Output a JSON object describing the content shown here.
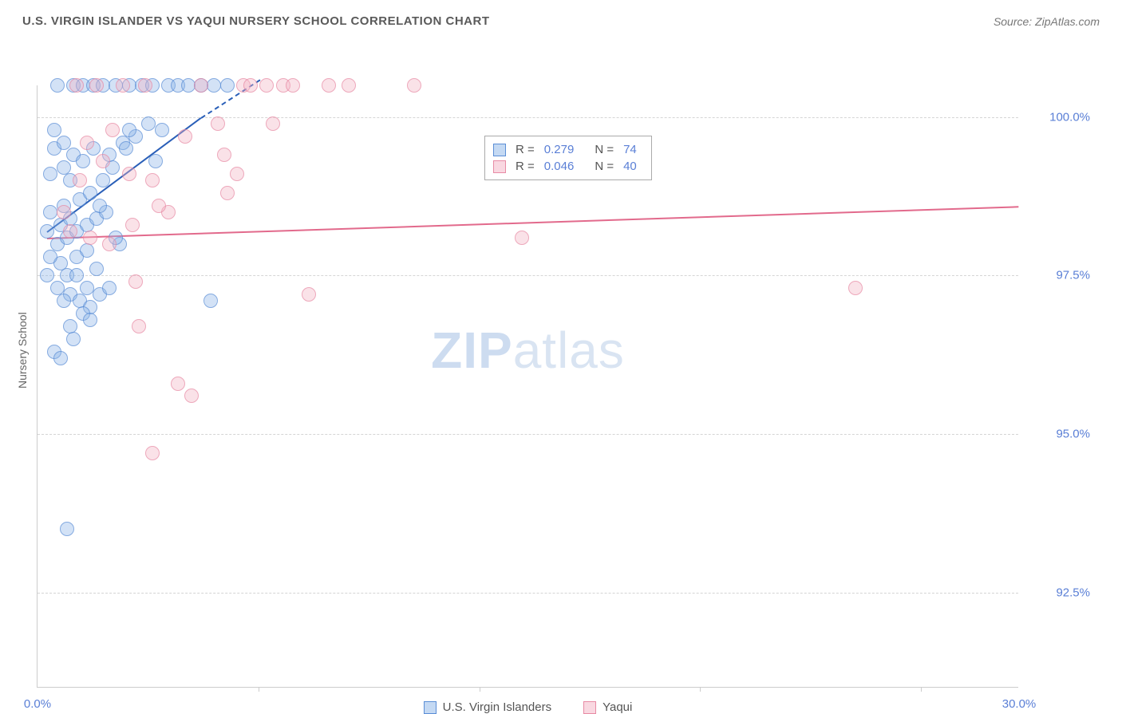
{
  "header": {
    "title": "U.S. VIRGIN ISLANDER VS YAQUI NURSERY SCHOOL CORRELATION CHART",
    "source": "Source: ZipAtlas.com"
  },
  "chart": {
    "type": "scatter",
    "background_color": "#ffffff",
    "grid_color": "#d5d5d5",
    "axes_color": "#cccccc",
    "y_axis_label": "Nursery School",
    "x_axis": {
      "min": 0.0,
      "max": 30.0,
      "ticks": [
        {
          "value": 0.0,
          "label": "0.0%"
        },
        {
          "value": 30.0,
          "label": "30.0%"
        }
      ],
      "minor_ticks": [
        6.75,
        13.5,
        20.25,
        27.0
      ],
      "label_color": "#5a7fd6",
      "label_fontsize": 15
    },
    "y_axis": {
      "min": 91.0,
      "max": 100.5,
      "ticks": [
        {
          "value": 92.5,
          "label": "92.5%"
        },
        {
          "value": 95.0,
          "label": "95.0%"
        },
        {
          "value": 97.5,
          "label": "97.5%"
        },
        {
          "value": 100.0,
          "label": "100.0%"
        }
      ],
      "label_color": "#5a7fd6",
      "label_fontsize": 15
    },
    "watermark": {
      "bold": "ZIP",
      "light": "atlas"
    },
    "series": [
      {
        "name": "U.S. Virgin Islanders",
        "color_fill": "rgba(138,180,232,0.5)",
        "color_stroke": "#5b8ed6",
        "marker": "circle",
        "marker_size": 18,
        "points": [
          [
            0.3,
            98.2
          ],
          [
            0.4,
            98.5
          ],
          [
            0.4,
            99.1
          ],
          [
            0.5,
            99.5
          ],
          [
            0.5,
            99.8
          ],
          [
            0.6,
            100.5
          ],
          [
            0.6,
            98.0
          ],
          [
            0.7,
            97.7
          ],
          [
            0.7,
            98.3
          ],
          [
            0.8,
            98.6
          ],
          [
            0.8,
            99.2
          ],
          [
            0.8,
            99.6
          ],
          [
            0.9,
            98.1
          ],
          [
            0.9,
            97.5
          ],
          [
            1.0,
            97.2
          ],
          [
            1.0,
            98.4
          ],
          [
            1.0,
            99.0
          ],
          [
            1.1,
            99.4
          ],
          [
            1.1,
            100.5
          ],
          [
            1.2,
            98.2
          ],
          [
            1.2,
            97.8
          ],
          [
            1.3,
            97.1
          ],
          [
            1.3,
            98.7
          ],
          [
            1.4,
            99.3
          ],
          [
            1.4,
            100.5
          ],
          [
            1.5,
            98.3
          ],
          [
            1.5,
            97.3
          ],
          [
            1.6,
            97.0
          ],
          [
            1.6,
            98.8
          ],
          [
            1.7,
            99.5
          ],
          [
            1.7,
            100.5
          ],
          [
            1.8,
            98.4
          ],
          [
            1.9,
            97.2
          ],
          [
            2.0,
            99.0
          ],
          [
            2.0,
            100.5
          ],
          [
            2.1,
            98.5
          ],
          [
            2.2,
            97.3
          ],
          [
            2.3,
            99.2
          ],
          [
            2.4,
            100.5
          ],
          [
            2.5,
            98.0
          ],
          [
            2.6,
            99.6
          ],
          [
            2.8,
            100.5
          ],
          [
            3.0,
            99.7
          ],
          [
            3.2,
            100.5
          ],
          [
            3.4,
            99.9
          ],
          [
            3.5,
            100.5
          ],
          [
            3.8,
            99.8
          ],
          [
            4.0,
            100.5
          ],
          [
            4.3,
            100.5
          ],
          [
            4.6,
            100.5
          ],
          [
            5.0,
            100.5
          ],
          [
            5.4,
            100.5
          ],
          [
            5.8,
            100.5
          ],
          [
            0.5,
            96.3
          ],
          [
            0.7,
            96.2
          ],
          [
            1.0,
            96.7
          ],
          [
            1.4,
            96.9
          ],
          [
            0.9,
            93.5
          ],
          [
            1.2,
            97.5
          ],
          [
            1.6,
            96.8
          ],
          [
            1.8,
            97.6
          ],
          [
            2.2,
            99.4
          ],
          [
            2.4,
            98.1
          ],
          [
            2.8,
            99.8
          ],
          [
            3.6,
            99.3
          ],
          [
            5.3,
            97.1
          ],
          [
            0.3,
            97.5
          ],
          [
            0.4,
            97.8
          ],
          [
            0.6,
            97.3
          ],
          [
            0.8,
            97.1
          ],
          [
            1.1,
            96.5
          ],
          [
            1.5,
            97.9
          ],
          [
            1.9,
            98.6
          ],
          [
            2.7,
            99.5
          ]
        ],
        "trendline": {
          "color": "#2a5fb8",
          "start": [
            0.3,
            98.2
          ],
          "end_solid": [
            5.0,
            100.0
          ],
          "end_dash": [
            6.8,
            100.6
          ]
        },
        "stats": {
          "R": "0.279",
          "N": "74"
        }
      },
      {
        "name": "Yaqui",
        "color_fill": "rgba(244,178,195,0.5)",
        "color_stroke": "#e88ba5",
        "marker": "circle",
        "marker_size": 18,
        "points": [
          [
            0.8,
            98.5
          ],
          [
            1.0,
            98.2
          ],
          [
            1.2,
            100.5
          ],
          [
            1.3,
            99.0
          ],
          [
            1.5,
            99.6
          ],
          [
            1.6,
            98.1
          ],
          [
            1.8,
            100.5
          ],
          [
            2.0,
            99.3
          ],
          [
            2.2,
            98.0
          ],
          [
            2.3,
            99.8
          ],
          [
            2.6,
            100.5
          ],
          [
            2.8,
            99.1
          ],
          [
            3.0,
            97.4
          ],
          [
            3.1,
            96.7
          ],
          [
            3.3,
            100.5
          ],
          [
            3.5,
            99.0
          ],
          [
            3.5,
            94.7
          ],
          [
            4.0,
            98.5
          ],
          [
            4.3,
            95.8
          ],
          [
            4.7,
            95.6
          ],
          [
            5.0,
            100.5
          ],
          [
            5.5,
            99.9
          ],
          [
            5.8,
            98.8
          ],
          [
            6.1,
            99.1
          ],
          [
            6.3,
            100.5
          ],
          [
            6.5,
            100.5
          ],
          [
            7.0,
            100.5
          ],
          [
            7.2,
            99.9
          ],
          [
            7.5,
            100.5
          ],
          [
            7.8,
            100.5
          ],
          [
            8.3,
            97.2
          ],
          [
            11.5,
            100.5
          ],
          [
            8.9,
            100.5
          ],
          [
            9.5,
            100.5
          ],
          [
            14.8,
            98.1
          ],
          [
            25.0,
            97.3
          ],
          [
            2.9,
            98.3
          ],
          [
            3.7,
            98.6
          ],
          [
            5.7,
            99.4
          ],
          [
            4.5,
            99.7
          ]
        ],
        "trendline": {
          "color": "#e26a8c",
          "start": [
            0.3,
            98.1
          ],
          "end_solid": [
            30.0,
            98.6
          ]
        },
        "stats": {
          "R": "0.046",
          "N": "40"
        }
      }
    ],
    "stat_box": {
      "rows": [
        {
          "swatch": "blue",
          "R_label": "R =",
          "R_val": "0.279",
          "N_label": "N =",
          "N_val": "74"
        },
        {
          "swatch": "pink",
          "R_label": "R =",
          "R_val": "0.046",
          "N_label": "N =",
          "N_val": "40"
        }
      ]
    },
    "bottom_legend": [
      {
        "swatch": "blue",
        "label": "U.S. Virgin Islanders"
      },
      {
        "swatch": "pink",
        "label": "Yaqui"
      }
    ]
  }
}
